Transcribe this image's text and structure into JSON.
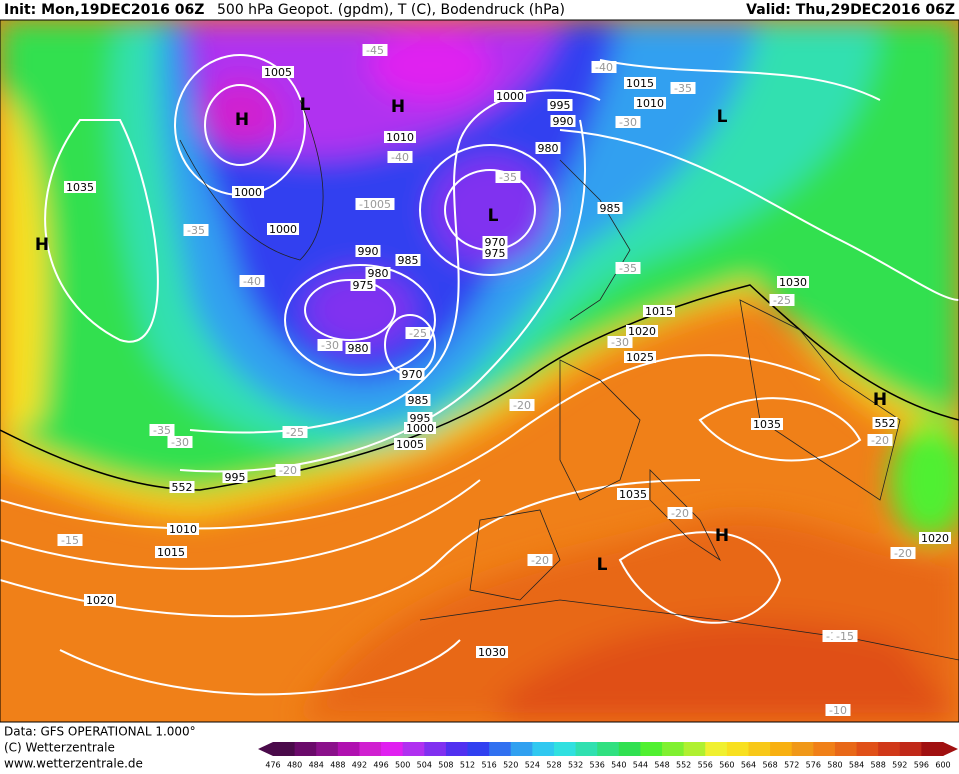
{
  "header": {
    "init": "Init: Mon,19DEC2016 06Z",
    "title": "500 hPa Geopot. (gpdm), T (C), Bodendruck (hPa)",
    "valid": "Valid: Thu,29DEC2016 06Z"
  },
  "footer": {
    "data": "Data: GFS OPERATIONAL 1.000°",
    "copyright": "(C) Wetterzentrale",
    "url": "www.wetterzentrale.de"
  },
  "legend": {
    "levels": [
      476,
      480,
      484,
      488,
      492,
      496,
      500,
      504,
      508,
      512,
      516,
      520,
      524,
      528,
      532,
      536,
      540,
      544,
      548,
      552,
      556,
      560,
      564,
      568,
      572,
      576,
      580,
      584,
      588,
      592,
      596,
      600
    ],
    "colors": [
      "#4a0a4a",
      "#6a0a6a",
      "#8a108a",
      "#b010b0",
      "#d020d0",
      "#e020f0",
      "#b030f0",
      "#8030f0",
      "#5030f0",
      "#3040f0",
      "#3070f0",
      "#30a0f0",
      "#30c8f0",
      "#30e0e0",
      "#30e0b0",
      "#30e080",
      "#30e050",
      "#50f030",
      "#80f030",
      "#b0f030",
      "#f0f030",
      "#f8e020",
      "#f8c818",
      "#f8b010",
      "#f09818",
      "#f08018",
      "#e86818",
      "#e05018",
      "#d03818",
      "#c02818",
      "#a01010"
    ]
  },
  "labels": [
    "1005",
    "-45",
    "-40",
    "1015",
    "-35",
    "1010",
    "1000",
    "995",
    "990",
    "-30",
    "1010",
    "-40",
    "980",
    "-35",
    "1035",
    "1000",
    "-1005",
    "985",
    "1000",
    "-35",
    "-40",
    "990",
    "985",
    "980",
    "975",
    "970",
    "975",
    "-35",
    "1030",
    "-25",
    "-30",
    "980",
    "-25",
    "1015",
    "1020",
    "970",
    "-30",
    "1025",
    "985",
    "995",
    "1000",
    "-20",
    "1035",
    "-35",
    "-30",
    "-25",
    "1005",
    "552",
    "-20",
    "995",
    "552",
    "-15",
    "1010",
    "1035",
    "1015",
    "-20",
    "-20",
    "1020",
    "-20",
    "-15",
    "1020",
    "-20",
    "1030",
    "-15",
    "-10",
    "H",
    "L",
    "H",
    "H",
    "L",
    "L",
    "H",
    "L",
    "H"
  ]
}
